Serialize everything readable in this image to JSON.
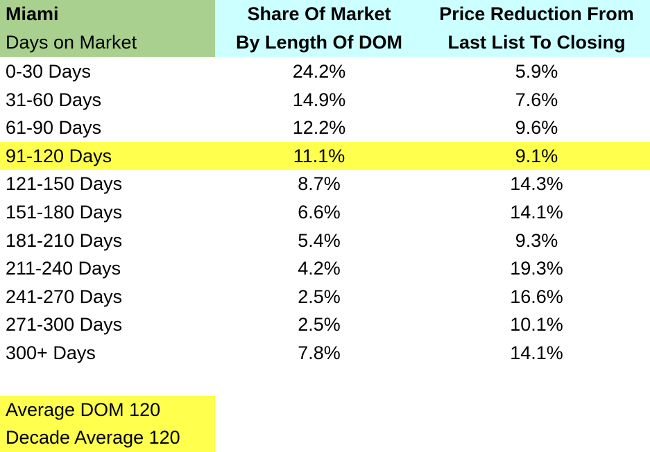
{
  "colors": {
    "header_left_bg": "#a9d08e",
    "header_right_bg": "#ccffff",
    "highlight_bg": "#ffff4d",
    "footer_bg": "#ffff4d"
  },
  "header": {
    "city": "Miami",
    "first_column": "Days on Market",
    "second_column_line1": "Share Of Market",
    "second_column_line2": "By Length Of DOM",
    "third_column_line1": "Price Reduction From",
    "third_column_line2": "Last List To Closing"
  },
  "chart_data": {
    "type": "table",
    "columns": [
      "Days on Market",
      "Share Of Market By Length Of DOM",
      "Price Reduction From Last List To Closing"
    ],
    "highlighted_row": "91-120 Days",
    "rows": [
      {
        "label": "0-30 Days",
        "share": "24.2%",
        "reduction": "5.9%"
      },
      {
        "label": "31-60 Days",
        "share": "14.9%",
        "reduction": "7.6%"
      },
      {
        "label": "61-90 Days",
        "share": "12.2%",
        "reduction": "9.6%"
      },
      {
        "label": "91-120 Days",
        "share": "11.1%",
        "reduction": "9.1%"
      },
      {
        "label": "121-150 Days",
        "share": "8.7%",
        "reduction": "14.3%"
      },
      {
        "label": "151-180 Days",
        "share": "6.6%",
        "reduction": "14.1%"
      },
      {
        "label": "181-210 Days",
        "share": "5.4%",
        "reduction": "9.3%"
      },
      {
        "label": "211-240 Days",
        "share": "4.2%",
        "reduction": "19.3%"
      },
      {
        "label": "241-270 Days",
        "share": "2.5%",
        "reduction": "16.6%"
      },
      {
        "label": "271-300 Days",
        "share": "2.5%",
        "reduction": "10.1%"
      },
      {
        "label": "300+ Days",
        "share": "7.8%",
        "reduction": "14.1%"
      }
    ]
  },
  "footer": {
    "average_dom": "Average DOM 120",
    "decade_average": "Decade Average 120"
  }
}
